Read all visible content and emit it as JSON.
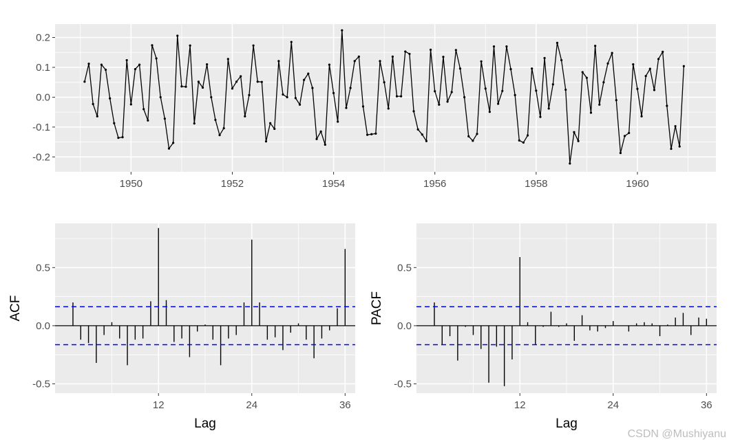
{
  "chart_data": [
    {
      "type": "line",
      "title": "",
      "xlabel": "",
      "ylabel": "",
      "x_start": 1949.083,
      "x_step": 0.08333,
      "xlim": [
        1948.5,
        1961.55
      ],
      "ylim": [
        -0.25,
        0.245
      ],
      "xticks": [
        1950,
        1952,
        1954,
        1956,
        1958,
        1960
      ],
      "xtick_labels": [
        "1950",
        "1952",
        "1954",
        "1956",
        "1958",
        "1960"
      ],
      "yticks": [
        0.2,
        0.1,
        0.0,
        -0.1,
        -0.2
      ],
      "ytick_labels": [
        "0.2",
        "0.1",
        "0.0",
        "-0.1",
        "-0.2"
      ],
      "grid": true,
      "values": [
        0.052,
        0.112,
        -0.023,
        -0.064,
        0.109,
        0.092,
        -0.004,
        -0.087,
        -0.136,
        -0.134,
        0.124,
        -0.024,
        0.094,
        0.109,
        -0.04,
        -0.078,
        0.174,
        0.13,
        0.0,
        -0.072,
        -0.172,
        -0.153,
        0.206,
        0.036,
        0.035,
        0.173,
        -0.088,
        0.052,
        0.032,
        0.11,
        0.0,
        -0.076,
        -0.127,
        -0.104,
        0.128,
        0.029,
        0.052,
        0.07,
        -0.064,
        0.007,
        0.173,
        0.052,
        0.051,
        -0.148,
        -0.087,
        -0.106,
        0.121,
        0.009,
        0.0,
        0.185,
        -0.003,
        -0.025,
        0.058,
        0.079,
        0.031,
        -0.14,
        -0.115,
        -0.159,
        0.109,
        0.014,
        -0.082,
        0.224,
        -0.036,
        0.031,
        0.121,
        0.136,
        -0.031,
        -0.126,
        -0.124,
        -0.122,
        0.121,
        0.05,
        -0.038,
        0.136,
        0.003,
        0.003,
        0.153,
        0.145,
        -0.047,
        -0.108,
        -0.125,
        -0.147,
        0.159,
        0.02,
        -0.025,
        0.135,
        -0.015,
        0.017,
        0.158,
        0.096,
        0.0,
        -0.131,
        -0.146,
        -0.123,
        0.12,
        0.029,
        -0.049,
        0.17,
        -0.022,
        0.021,
        0.17,
        0.094,
        0.007,
        -0.145,
        -0.152,
        -0.128,
        0.096,
        0.022,
        -0.066,
        0.131,
        -0.038,
        0.043,
        0.182,
        0.124,
        0.025,
        -0.222,
        -0.117,
        -0.147,
        0.084,
        0.065,
        -0.052,
        0.172,
        -0.025,
        0.05,
        0.113,
        0.148,
        -0.01,
        -0.187,
        -0.13,
        -0.12,
        0.11,
        0.028,
        -0.064,
        0.071,
        0.095,
        0.024,
        0.128,
        0.152,
        -0.029,
        -0.173,
        -0.097,
        -0.165,
        0.104
      ]
    },
    {
      "type": "bar",
      "title": "",
      "xlabel": "Lag",
      "ylabel": "ACF",
      "xlim": [
        -1.3,
        37.3
      ],
      "ylim": [
        -0.58,
        0.88
      ],
      "xticks": [
        12,
        24,
        36
      ],
      "xtick_labels": [
        "12",
        "24",
        "36"
      ],
      "yticks": [
        0.5,
        0.0,
        -0.5
      ],
      "ytick_labels": [
        "0.5",
        "0.0",
        "-0.5"
      ],
      "ci": 0.163,
      "grid": true,
      "lags": [
        1,
        2,
        3,
        4,
        5,
        6,
        7,
        8,
        9,
        10,
        11,
        12,
        13,
        14,
        15,
        16,
        17,
        18,
        19,
        20,
        21,
        22,
        23,
        24,
        25,
        26,
        27,
        28,
        29,
        30,
        31,
        32,
        33,
        34,
        35,
        36
      ],
      "values": [
        0.2,
        -0.12,
        -0.15,
        -0.32,
        -0.08,
        0.03,
        -0.11,
        -0.34,
        -0.12,
        -0.11,
        0.21,
        0.84,
        0.22,
        -0.14,
        -0.11,
        -0.27,
        -0.05,
        0.01,
        -0.12,
        -0.34,
        -0.11,
        -0.08,
        0.2,
        0.74,
        0.2,
        -0.12,
        -0.1,
        -0.21,
        -0.06,
        0.02,
        -0.12,
        -0.28,
        -0.11,
        -0.04,
        0.15,
        0.66
      ]
    },
    {
      "type": "bar",
      "title": "",
      "xlabel": "Lag",
      "ylabel": "PACF",
      "xlim": [
        -1.3,
        37.3
      ],
      "ylim": [
        -0.58,
        0.88
      ],
      "xticks": [
        12,
        24,
        36
      ],
      "xtick_labels": [
        "12",
        "24",
        "36"
      ],
      "yticks": [
        0.5,
        0.0,
        -0.5
      ],
      "ytick_labels": [
        "0.5",
        "0.0",
        "-0.5"
      ],
      "ci": 0.163,
      "grid": true,
      "lags": [
        1,
        2,
        3,
        4,
        5,
        6,
        7,
        8,
        9,
        10,
        11,
        12,
        13,
        14,
        15,
        16,
        17,
        18,
        19,
        20,
        21,
        22,
        23,
        24,
        25,
        26,
        27,
        28,
        29,
        30,
        31,
        32,
        33,
        34,
        35,
        36
      ],
      "values": [
        0.2,
        -0.16,
        -0.09,
        -0.3,
        -0.01,
        -0.08,
        -0.2,
        -0.49,
        -0.18,
        -0.52,
        -0.29,
        0.59,
        0.03,
        -0.16,
        -0.01,
        0.12,
        -0.01,
        0.02,
        -0.13,
        0.09,
        -0.04,
        -0.05,
        -0.02,
        0.04,
        0.0,
        -0.05,
        0.02,
        0.03,
        0.02,
        -0.09,
        0.01,
        0.07,
        0.11,
        -0.08,
        0.07,
        0.06
      ]
    }
  ],
  "colors": {
    "panel_bg": "#ebebeb",
    "grid": "#ffffff",
    "line": "#000000",
    "ci": "#0000ff"
  },
  "watermark": "CSDN @Mushiyanu"
}
